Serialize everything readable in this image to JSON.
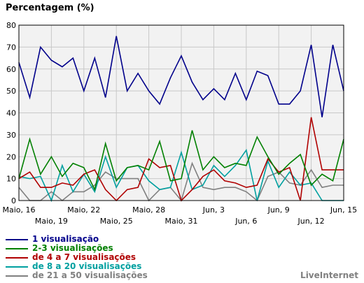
{
  "chart_data": {
    "type": "line",
    "title": "Percentagem (%)",
    "xlabel": "",
    "ylabel": "",
    "ylim": [
      0,
      80
    ],
    "yticks": [
      0,
      10,
      20,
      30,
      40,
      50,
      60,
      70,
      80
    ],
    "grid": true,
    "legend_position": "bottom-left",
    "x_tick_labels_top": [
      "Maio, 16",
      "Maio, 22",
      "Maio, 28",
      "Jun, 3",
      "Jun, 9",
      "Jun, 15"
    ],
    "x_tick_labels_bottom": [
      "Maio, 19",
      "Maio, 25",
      "Maio, 31",
      "Jun, 6",
      "Jun, 12"
    ],
    "series": [
      {
        "name": "1 visualisação",
        "color": "#00008b",
        "values": [
          63,
          47,
          70,
          64,
          61,
          65,
          50,
          65,
          47,
          75,
          50,
          58,
          50,
          44,
          56,
          66,
          54,
          46,
          51,
          46,
          58,
          46,
          59,
          57,
          44,
          44,
          50,
          71,
          38,
          71,
          50
        ]
      },
      {
        "name": "2-3 visualisações",
        "color": "#008000",
        "values": [
          10,
          28,
          12,
          20,
          11,
          17,
          15,
          5,
          26,
          9,
          15,
          16,
          14,
          27,
          9,
          10,
          32,
          14,
          20,
          15,
          17,
          16,
          29,
          20,
          12,
          17,
          21,
          7,
          12,
          9,
          28
        ]
      },
      {
        "name": "de 4 a 7 visualisações",
        "color": "#b00000",
        "values": [
          10,
          13,
          6,
          6,
          8,
          7,
          12,
          14,
          5,
          0,
          5,
          6,
          19,
          15,
          16,
          0,
          5,
          11,
          14,
          9,
          8,
          6,
          7,
          19,
          13,
          15,
          0,
          38,
          14,
          14,
          14
        ]
      },
      {
        "name": "de 8 a 20 visualisações",
        "color": "#00a0a0",
        "values": [
          11,
          10,
          11,
          0,
          16,
          4,
          12,
          4,
          20,
          6,
          15,
          16,
          9,
          5,
          6,
          22,
          5,
          7,
          16,
          11,
          16,
          23,
          0,
          18,
          6,
          13,
          7,
          8,
          0,
          0,
          0
        ]
      },
      {
        "name": "de 21 a 50 visualisações",
        "color": "#808080",
        "values": [
          6,
          0,
          0,
          4,
          0,
          4,
          4,
          7,
          13,
          10,
          10,
          10,
          0,
          5,
          6,
          0,
          17,
          6,
          5,
          6,
          6,
          4,
          0,
          11,
          13,
          8,
          7,
          14,
          6,
          7,
          7
        ]
      }
    ]
  },
  "brand": "LiveInternet"
}
